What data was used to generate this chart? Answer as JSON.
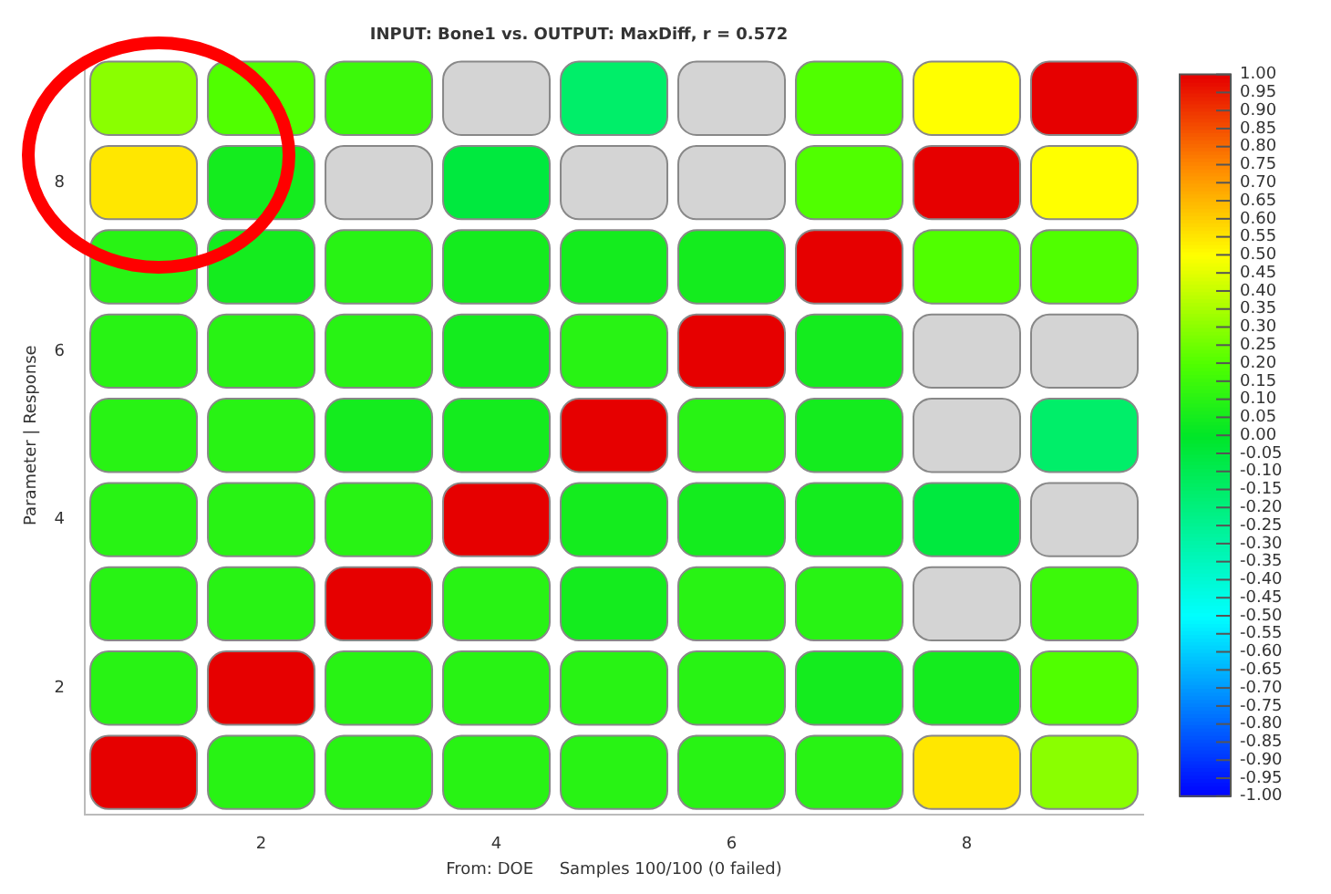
{
  "chart_data": {
    "type": "heatmap",
    "title": "INPUT: Bone1 vs. OUTPUT: MaxDiff, r = 0.572",
    "xlabel": "From: DOE     Samples 100/100 (0 failed)",
    "ylabel": "Parameter | Response",
    "categories": [
      null,
      "2",
      null,
      "4",
      null,
      "6",
      null,
      "8",
      null
    ],
    "y_categories": [
      null,
      "8",
      null,
      "6",
      null,
      "4",
      null,
      "2",
      null
    ],
    "cells": [
      [
        0.3,
        0.2,
        0.15,
        null,
        -0.15,
        null,
        0.2,
        0.5,
        1
      ],
      [
        0.55,
        0.05,
        null,
        -0.05,
        null,
        null,
        0.2,
        1,
        0.5
      ],
      [
        0.1,
        0.05,
        0.1,
        0.05,
        0.05,
        0.05,
        1,
        0.2,
        0.2
      ],
      [
        0.1,
        0.1,
        0.1,
        0.05,
        0.1,
        1,
        0.05,
        null,
        null
      ],
      [
        0.1,
        0.1,
        0.05,
        0.05,
        1,
        0.1,
        0.05,
        null,
        -0.15
      ],
      [
        0.1,
        0.1,
        0.1,
        1,
        0.05,
        0.05,
        0.05,
        -0.05,
        null
      ],
      [
        0.1,
        0.1,
        1,
        0.1,
        0.05,
        0.1,
        0.1,
        null,
        0.15
      ],
      [
        0.1,
        1,
        0.1,
        0.1,
        0.1,
        0.1,
        0.05,
        0.05,
        0.2
      ],
      [
        1,
        0.1,
        0.1,
        0.1,
        0.1,
        0.1,
        0.1,
        0.55,
        0.3
      ]
    ],
    "clim": [
      -1,
      1
    ],
    "cticks": [
      {
        "value": 1,
        "label": "1.00"
      },
      {
        "value": 0.95,
        "label": "0.95"
      },
      {
        "value": 0.9,
        "label": "0.90"
      },
      {
        "value": 0.85,
        "label": "0.85"
      },
      {
        "value": 0.8,
        "label": "0.80"
      },
      {
        "value": 0.75,
        "label": "0.75"
      },
      {
        "value": 0.7,
        "label": "0.70"
      },
      {
        "value": 0.65,
        "label": "0.65"
      },
      {
        "value": 0.6,
        "label": "0.60"
      },
      {
        "value": 0.55,
        "label": "0.55"
      },
      {
        "value": 0.5,
        "label": "0.50"
      },
      {
        "value": 0.45,
        "label": "0.45"
      },
      {
        "value": 0.4,
        "label": "0.40"
      },
      {
        "value": 0.35,
        "label": "0.35"
      },
      {
        "value": 0.3,
        "label": "0.30"
      },
      {
        "value": 0.25,
        "label": "0.25"
      },
      {
        "value": 0.2,
        "label": "0.20"
      },
      {
        "value": 0.15,
        "label": "0.15"
      },
      {
        "value": 0.1,
        "label": "0.10"
      },
      {
        "value": 0.05,
        "label": "0.05"
      },
      {
        "value": 0,
        "label": "0.00"
      },
      {
        "value": -0.05,
        "label": "-0.05"
      },
      {
        "value": -0.1,
        "label": "-0.10"
      },
      {
        "value": -0.15,
        "label": "-0.15"
      },
      {
        "value": -0.2,
        "label": "-0.20"
      },
      {
        "value": -0.25,
        "label": "-0.25"
      },
      {
        "value": -0.3,
        "label": "-0.30"
      },
      {
        "value": -0.35,
        "label": "-0.35"
      },
      {
        "value": -0.4,
        "label": "-0.40"
      },
      {
        "value": -0.45,
        "label": "-0.45"
      },
      {
        "value": -0.5,
        "label": "-0.50"
      },
      {
        "value": -0.55,
        "label": "-0.55"
      },
      {
        "value": -0.6,
        "label": "-0.60"
      },
      {
        "value": -0.65,
        "label": "-0.65"
      },
      {
        "value": -0.7,
        "label": "-0.70"
      },
      {
        "value": -0.75,
        "label": "-0.75"
      },
      {
        "value": -0.8,
        "label": "-0.80"
      },
      {
        "value": -0.85,
        "label": "-0.85"
      },
      {
        "value": -0.9,
        "label": "-0.90"
      },
      {
        "value": -0.95,
        "label": "-0.95"
      },
      {
        "value": -1,
        "label": "-1.00"
      }
    ]
  }
}
